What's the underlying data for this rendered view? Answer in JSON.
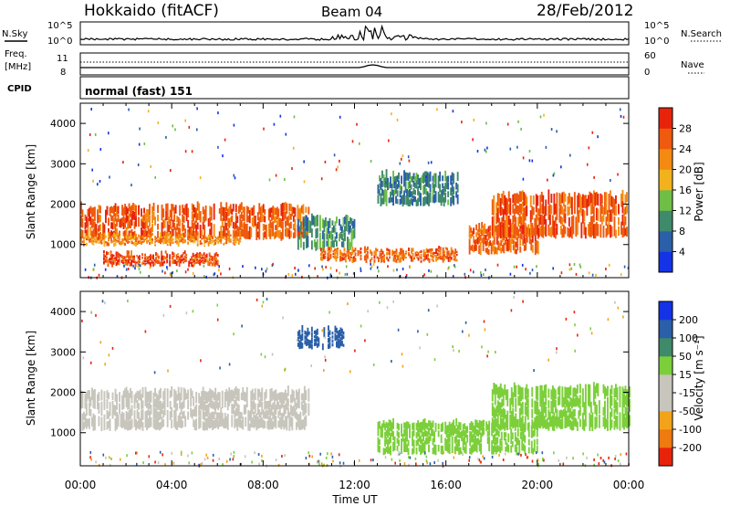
{
  "header": {
    "station": "Hokkaido (fitACF)",
    "beam": "Beam 04",
    "date": "28/Feb/2012"
  },
  "noise_panel": {
    "left_label": "N.Sky",
    "right_label": "N.Search",
    "left_ticks": [
      "10^5",
      "10^0"
    ],
    "right_ticks": [
      "10^5",
      "10^0"
    ]
  },
  "freq_panel": {
    "left_label_line1": "Freq.",
    "left_label_line2": "[MHz]",
    "left_ticks": [
      "11",
      "8"
    ],
    "right_label": "Nave",
    "right_ticks": [
      "60",
      "0"
    ]
  },
  "cpid_panel": {
    "label": "CPID",
    "value": "normal (fast) 151"
  },
  "power_panel": {
    "ylabel": "Slant Range [km]",
    "yticks": [
      "1000",
      "2000",
      "3000",
      "4000"
    ],
    "colorbar_label": "Power [dB]",
    "colorbar_ticks": [
      "4",
      "8",
      "12",
      "16",
      "20",
      "24",
      "28"
    ],
    "colors": [
      "#1433e6",
      "#2b5fa8",
      "#3f8a6a",
      "#6fbe46",
      "#f2b21e",
      "#f58a12",
      "#ef5a0e",
      "#e8230c"
    ]
  },
  "velocity_panel": {
    "ylabel": "Slant Range [km]",
    "yticks": [
      "1000",
      "2000",
      "3000",
      "4000"
    ],
    "colorbar_label": "Velocity [m s⁻¹]",
    "colorbar_ticks": [
      "-200",
      "-100",
      "-50",
      "-15",
      "15",
      "50",
      "100",
      "200"
    ],
    "colors": [
      "#e8230c",
      "#ef7a10",
      "#f2a31a",
      "#c8c5bc",
      "#c8c5bc",
      "#7ccf3a",
      "#3f8a6a",
      "#2b5fa8",
      "#1433e6"
    ]
  },
  "xaxis": {
    "label": "Time UT",
    "ticks": [
      "00:00",
      "04:00",
      "08:00",
      "12:00",
      "16:00",
      "20:00",
      "00:00"
    ]
  },
  "chart_data": {
    "type": "heatmap",
    "x_unit": "hours UT",
    "x_range": [
      0,
      24
    ],
    "y_range_km": [
      180,
      4500
    ],
    "power_regions": [
      {
        "t": [
          0.0,
          10.0
        ],
        "r": [
          1150,
          2000
        ],
        "dB": 26
      },
      {
        "t": [
          0.0,
          7.0
        ],
        "r": [
          1000,
          1250
        ],
        "dB": 22
      },
      {
        "t": [
          1.0,
          6.0
        ],
        "r": [
          500,
          800
        ],
        "dB": 27
      },
      {
        "t": [
          9.5,
          12.0
        ],
        "r": [
          900,
          1700
        ],
        "dB": 10
      },
      {
        "t": [
          10.5,
          16.5
        ],
        "r": [
          600,
          900
        ],
        "dB": 25
      },
      {
        "t": [
          13.0,
          16.5
        ],
        "r": [
          2000,
          2800
        ],
        "dB": 9
      },
      {
        "t": [
          17.0,
          20.0
        ],
        "r": [
          800,
          1500
        ],
        "dB": 26
      },
      {
        "t": [
          18.0,
          24.0
        ],
        "r": [
          1200,
          2300
        ],
        "dB": 26
      }
    ],
    "velocity_regions": [
      {
        "t": [
          0.0,
          10.0
        ],
        "r": [
          1100,
          2100
        ],
        "v": 0
      },
      {
        "t": [
          13.0,
          20.0
        ],
        "r": [
          500,
          1300
        ],
        "v": 30
      },
      {
        "t": [
          18.0,
          24.0
        ],
        "r": [
          1100,
          2200
        ],
        "v": 25
      },
      {
        "t": [
          9.5,
          11.5
        ],
        "r": [
          3100,
          3600
        ],
        "v": 150
      }
    ]
  }
}
